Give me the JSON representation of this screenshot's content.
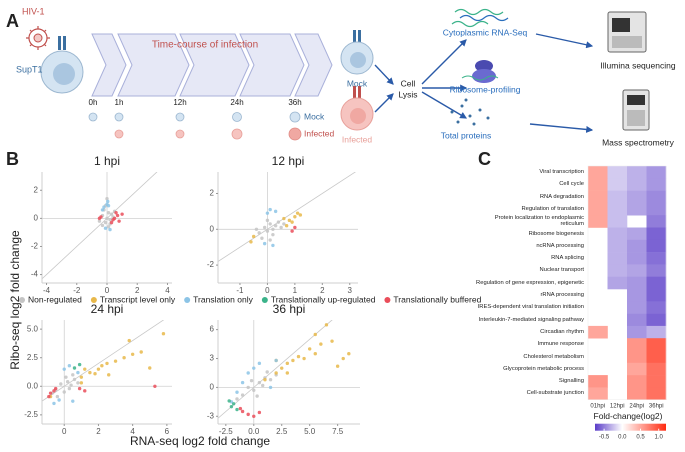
{
  "diagram": {
    "panel_label": "A",
    "virus": "HIV-1",
    "cell_line": "SupT1",
    "timeline": "Time-course of infection",
    "timepoints": [
      "0h",
      "1h",
      "12h",
      "24h",
      "36h"
    ],
    "row_labels": [
      "Mock",
      "Infected"
    ],
    "conditions": [
      "Mock",
      "Infected"
    ],
    "lysis": [
      "Cell",
      "Lysis"
    ],
    "assays": [
      "Cytoplasmic RNA-Seq",
      "Ribosome-profiling",
      "Total proteins"
    ],
    "outputs": [
      "Illumina sequencing",
      "Mass spectrometry"
    ]
  },
  "panel_b": {
    "label": "B",
    "ylabel": "Ribo-seq log2 fold change",
    "xlabel": "RNA-seq log2 fold change"
  },
  "panel_c": {
    "label": "C"
  },
  "chart_data": [
    {
      "type": "scatter",
      "title": "1 hpi",
      "xlim": [
        -4.3,
        4.3
      ],
      "ylim": [
        -4.6,
        3.3
      ],
      "xticks": [
        -4,
        -2,
        0,
        2,
        4
      ],
      "yticks": [
        -4,
        -2,
        0,
        2
      ],
      "series": [
        {
          "name": "Non-regulated",
          "color": "#c4c4c4",
          "x": [
            -0.3,
            -0.1,
            0.1,
            0.2,
            -0.2,
            0.0,
            0.3,
            -0.5,
            0.4,
            0.1,
            -0.1,
            0.2,
            -0.3,
            0.5,
            0.0
          ],
          "y": [
            0.2,
            -0.3,
            0.4,
            -0.1,
            0.6,
            0.0,
            0.3,
            -0.2,
            0.1,
            -0.6,
            0.9,
            -0.4,
            -0.5,
            0.5,
            1.4
          ]
        },
        {
          "name": "Transcript level only",
          "color": "#e8b84a",
          "x": [],
          "y": []
        },
        {
          "name": "Translation only",
          "color": "#8cc4e6",
          "x": [
            -0.2,
            0.0,
            0.1,
            -0.1,
            0.2,
            0.05,
            -0.3
          ],
          "y": [
            0.8,
            1.0,
            0.9,
            -0.7,
            -0.8,
            1.2,
            0.6
          ]
        },
        {
          "name": "Translationally up-regulated",
          "color": "#3bb38a",
          "x": [],
          "y": []
        },
        {
          "name": "Translationally buffered",
          "color": "#ea4d5a",
          "x": [
            0.5,
            0.7,
            0.4,
            0.8,
            -0.4,
            -0.5,
            0.6,
            1.0,
            0.3
          ],
          "y": [
            0.0,
            0.2,
            -0.1,
            -0.2,
            0.1,
            0.0,
            0.4,
            0.3,
            -0.3
          ]
        }
      ]
    },
    {
      "type": "scatter",
      "title": "12 hpi",
      "xlim": [
        -1.8,
        3.3
      ],
      "ylim": [
        -3.0,
        3.2
      ],
      "xticks": [
        -1,
        0,
        1,
        2,
        3
      ],
      "yticks": [
        -2,
        0,
        2
      ],
      "series": [
        {
          "name": "Non-regulated",
          "color": "#c4c4c4",
          "x": [
            -0.3,
            -0.1,
            0.0,
            0.1,
            0.2,
            0.3,
            -0.2,
            0.4,
            0.5,
            0.1,
            -0.4,
            0.6,
            0.0,
            0.2
          ],
          "y": [
            -0.2,
            0.1,
            -0.1,
            0.3,
            -0.3,
            0.2,
            -0.5,
            0.4,
            0.1,
            -0.6,
            0.0,
            0.3,
            0.5,
            0.0
          ]
        },
        {
          "name": "Transcript level only",
          "color": "#e8b84a",
          "x": [
            0.8,
            1.0,
            0.9,
            1.2,
            0.7,
            0.6,
            1.1,
            -0.5,
            -0.6
          ],
          "y": [
            0.5,
            0.7,
            0.4,
            0.8,
            0.2,
            0.6,
            0.9,
            -0.4,
            -0.7
          ]
        },
        {
          "name": "Translation only",
          "color": "#8cc4e6",
          "x": [
            0.0,
            0.2,
            -0.1,
            0.3,
            0.1
          ],
          "y": [
            0.9,
            -0.9,
            -0.8,
            1.0,
            1.1
          ]
        },
        {
          "name": "Translationally up-regulated",
          "color": "#3bb38a",
          "x": [],
          "y": []
        },
        {
          "name": "Translationally buffered",
          "color": "#ea4d5a",
          "x": [
            0.9,
            1.0
          ],
          "y": [
            -0.1,
            0.1
          ]
        }
      ]
    },
    {
      "type": "scatter",
      "title": "24 hpi",
      "xlim": [
        -1.3,
        6.3
      ],
      "ylim": [
        -3.3,
        5.8
      ],
      "xticks": [
        0,
        2,
        4,
        6
      ],
      "yticks": [
        -2.5,
        {
          "value": 0,
          "label": "0.0"
        },
        2.5,
        {
          "value": 5,
          "label": "5.0"
        }
      ],
      "series": [
        {
          "name": "Non-regulated",
          "color": "#c4c4c4",
          "x": [
            -0.5,
            -0.2,
            0,
            0.2,
            0.4,
            0.6,
            -0.4,
            0.1,
            0.3,
            0.8,
            -0.7,
            0.5
          ],
          "y": [
            -0.3,
            0.2,
            -0.5,
            0.4,
            0.1,
            0.6,
            -0.9,
            0.8,
            -0.2,
            0.3,
            -0.6,
            1.0
          ]
        },
        {
          "name": "Transcript level only",
          "color": "#e8b84a",
          "x": [
            1.0,
            1.5,
            2.0,
            2.5,
            3.0,
            3.5,
            1.2,
            1.8,
            2.2,
            4.0,
            4.5,
            5.0,
            3.8,
            1.0,
            2.6,
            -0.8,
            5.8
          ],
          "y": [
            0.8,
            1.2,
            1.5,
            2.0,
            2.2,
            2.5,
            1.5,
            1.1,
            1.8,
            2.8,
            3.0,
            1.6,
            4.0,
            0.3,
            1.0,
            -0.9,
            4.6
          ]
        },
        {
          "name": "Translation only",
          "color": "#8cc4e6",
          "x": [
            0.0,
            0.3,
            -0.3,
            0.5,
            0.8,
            -0.6
          ],
          "y": [
            1.5,
            1.8,
            -1.2,
            -1.3,
            1.2,
            -1.5
          ]
        },
        {
          "name": "Translationally up-regulated",
          "color": "#3bb38a",
          "x": [
            0.6,
            0.9
          ],
          "y": [
            1.6,
            1.9
          ]
        },
        {
          "name": "Translationally buffered",
          "color": "#ea4d5a",
          "x": [
            -0.8,
            -0.6,
            -0.9,
            -0.5,
            1.2,
            0.9,
            5.3
          ],
          "y": [
            -0.6,
            -0.4,
            -0.9,
            -0.2,
            -0.4,
            -0.2,
            0.0
          ]
        }
      ]
    },
    {
      "type": "scatter",
      "title": "36 hpi",
      "xlim": [
        -3.2,
        9.5
      ],
      "ylim": [
        -3.8,
        7.0
      ],
      "xticks": [
        -2.5,
        {
          "value": 0,
          "label": "0.0"
        },
        2.5,
        {
          "value": 5,
          "label": "5.0"
        },
        7.5
      ],
      "yticks": [
        -3,
        0,
        3,
        6
      ],
      "series": [
        {
          "name": "Non-regulated",
          "color": "#c4c4c4",
          "x": [
            -1,
            -0.5,
            0,
            0.5,
            1,
            1.5,
            -1.5,
            0.3,
            0.8,
            -0.2,
            2.0,
            1.2
          ],
          "y": [
            -0.8,
            0,
            -0.3,
            0.5,
            1,
            0.8,
            -1.2,
            -0.9,
            0.2,
            0.7,
            1.3,
            1.6
          ]
        },
        {
          "name": "Transcript level only",
          "color": "#e8b84a",
          "x": [
            1,
            2,
            2.5,
            3,
            3.5,
            4,
            4.5,
            5,
            5.5,
            6,
            7,
            8,
            8.5,
            3,
            2,
            5.5,
            7.5,
            6.5
          ],
          "y": [
            0.8,
            1.5,
            2,
            2.5,
            2.8,
            3.2,
            3,
            4,
            3.5,
            4.5,
            4.8,
            3,
            3.5,
            1.5,
            2.8,
            5.5,
            2.2,
            6.5
          ]
        },
        {
          "name": "Translation only",
          "color": "#8cc4e6",
          "x": [
            -1,
            -0.5,
            0,
            0.5,
            1.5,
            -2,
            2,
            -1.5
          ],
          "y": [
            0.5,
            1.5,
            2,
            2.5,
            0,
            -1.5,
            2.8,
            -0.5
          ]
        },
        {
          "name": "Translationally up-regulated",
          "color": "#3bb38a",
          "x": [
            -2,
            -1.8,
            -1.5,
            -2.2
          ],
          "y": [
            -2,
            -1.7,
            -2.3,
            -1.4
          ]
        },
        {
          "name": "Translationally buffered",
          "color": "#ea4d5a",
          "x": [
            -0.5,
            -1,
            0.5,
            -1.2,
            0
          ],
          "y": [
            -2.8,
            -2.5,
            -2.6,
            -2.2,
            -3.0
          ]
        }
      ]
    },
    {
      "type": "heatmap",
      "categories": [
        "Viral transcription",
        "Cell cycle",
        "RNA degradation",
        "Regulation of translation",
        "Protein localization to endoplasmic reticulum",
        "Ribosome biogenesis",
        "ncRNA processing",
        "RNA splicing",
        "Nuclear transport",
        "Regulation of gene expression, epigenetic",
        "rRNA processing",
        "IRES-dependent viral translation initiation",
        "Interleukin-7-mediated signaling pathway",
        "Circadian rhythm",
        "Immune response",
        "Cholesterol metabolism",
        "Glycoprotein metabolic process",
        "Signalling",
        "Cell-substrate junction"
      ],
      "columns": [
        "01hpi",
        "12hpi",
        "24hpi",
        "36hpi"
      ],
      "values": [
        [
          0.5,
          -0.2,
          -0.3,
          -0.4
        ],
        [
          0.5,
          -0.2,
          -0.3,
          -0.4
        ],
        [
          0.5,
          -0.25,
          -0.35,
          -0.45
        ],
        [
          0.5,
          -0.25,
          -0.35,
          -0.45
        ],
        [
          0.5,
          -0.25,
          null,
          -0.5
        ],
        [
          null,
          -0.3,
          -0.35,
          -0.6
        ],
        [
          null,
          -0.3,
          -0.4,
          -0.6
        ],
        [
          null,
          -0.3,
          -0.4,
          -0.55
        ],
        [
          null,
          -0.3,
          -0.35,
          -0.5
        ],
        [
          null,
          -0.35,
          -0.4,
          -0.6
        ],
        [
          null,
          null,
          -0.4,
          -0.6
        ],
        [
          null,
          null,
          -0.4,
          -0.55
        ],
        [
          null,
          null,
          -0.45,
          -0.6
        ],
        [
          0.5,
          null,
          -0.4,
          -0.3
        ],
        [
          null,
          null,
          0.6,
          0.9
        ],
        [
          null,
          null,
          0.6,
          0.9
        ],
        [
          null,
          null,
          0.5,
          0.8
        ],
        [
          0.6,
          null,
          0.6,
          0.8
        ],
        [
          0.5,
          null,
          0.6,
          0.8
        ]
      ],
      "clim": [
        -0.75,
        1.2
      ],
      "colors": [
        "#5a3cc8",
        "#ffffff",
        "#ff2a10"
      ],
      "colorbar_title": "Fold-change(log2)",
      "colorbar_ticks": [
        -0.5,
        {
          "value": 0,
          "label": "0.0"
        },
        0.5,
        {
          "value": 1,
          "label": "1.0"
        }
      ]
    }
  ]
}
